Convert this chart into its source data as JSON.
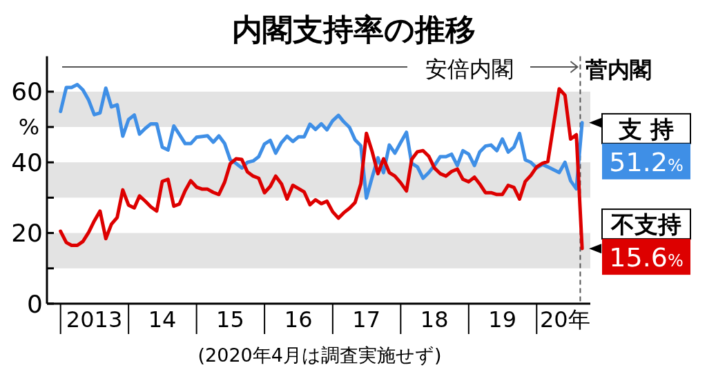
{
  "chart_data": {
    "type": "line",
    "title": "内閣支持率の推移",
    "ylabel": "%",
    "annotations": [
      {
        "text": "安倍内閣",
        "x": "2020-08-22",
        "y": 67
      },
      "(2020年4月は調査実施せず)"
    ],
    "x": [
      "2013-01",
      "2013-02",
      "2013-03",
      "2013-04",
      "2013-05",
      "2013-06",
      "2013-07",
      "2013-08",
      "2013-09",
      "2013-10",
      "2013-11",
      "2013-12",
      "2014-01",
      "2014-02",
      "2014-03",
      "2014-04",
      "2014-05",
      "2014-06",
      "2014-07",
      "2014-08",
      "2014-09",
      "2014-10",
      "2014-11",
      "2014-12",
      "2015-01",
      "2015-02",
      "2015-03",
      "2015-04",
      "2015-05",
      "2015-06",
      "2015-07",
      "2015-08",
      "2015-09",
      "2015-10",
      "2015-11",
      "2015-12",
      "2016-01",
      "2016-02",
      "2016-03",
      "2016-04",
      "2016-05",
      "2016-06",
      "2016-07",
      "2016-08",
      "2016-09",
      "2016-10",
      "2016-11",
      "2016-12",
      "2017-01",
      "2017-02",
      "2017-03",
      "2017-04",
      "2017-05",
      "2017-06",
      "2017-07",
      "2017-08",
      "2017-09",
      "2017-10",
      "2017-11",
      "2017-12",
      "2018-01",
      "2018-02",
      "2018-03",
      "2018-04",
      "2018-05",
      "2018-06",
      "2018-07",
      "2018-08",
      "2018-09",
      "2018-10",
      "2018-11",
      "2018-12",
      "2019-01",
      "2019-02",
      "2019-03",
      "2019-04",
      "2019-05",
      "2019-06",
      "2019-07",
      "2019-08",
      "2019-09",
      "2019-10",
      "2019-11",
      "2019-12",
      "2020-01",
      "2020-02",
      "2020-03",
      "2020-05",
      "2020-06",
      "2020-07",
      "2020-08",
      "2020-09"
    ],
    "series": [
      {
        "name": "支 持",
        "color": "#3f8fe6",
        "values": [
          54.4,
          61.2,
          61.2,
          62.0,
          60.5,
          57.6,
          53.5,
          54.0,
          61.0,
          55.7,
          56.3,
          47.4,
          52.1,
          53.4,
          48.0,
          49.6,
          50.9,
          50.9,
          44.3,
          43.5,
          50.3,
          47.9,
          45.3,
          45.3,
          47.1,
          47.3,
          47.5,
          45.7,
          47.5,
          45.3,
          40.7,
          39.7,
          38.4,
          40.0,
          40.4,
          41.6,
          45.2,
          46.2,
          42.6,
          45.6,
          47.4,
          45.9,
          47.2,
          47.2,
          50.8,
          49.3,
          50.9,
          49.2,
          51.8,
          53.3,
          51.5,
          49.9,
          46.4,
          44.7,
          29.9,
          35.8,
          41.3,
          37.1,
          44.9,
          42.6,
          45.6,
          48.5,
          39.7,
          38.7,
          35.5,
          37.1,
          39.1,
          41.6,
          41.6,
          42.3,
          39.1,
          43.3,
          42.3,
          39.1,
          42.9,
          44.6,
          44.9,
          43.3,
          46.6,
          42.9,
          44.3,
          48.2,
          40.7,
          40.0,
          38.4,
          39.4,
          38.7,
          37.1,
          40.0,
          34.8,
          32.5,
          51.2
        ],
        "value_labels": [
          null,
          null,
          null,
          null,
          null,
          null,
          null,
          null,
          null,
          null,
          null,
          null,
          null,
          null,
          null,
          null,
          null,
          null,
          null,
          null,
          null,
          null,
          null,
          null,
          null,
          null,
          null,
          null,
          null,
          null,
          null,
          null,
          null,
          null,
          null,
          null,
          null,
          null,
          null,
          null,
          null,
          null,
          null,
          null,
          null,
          null,
          null,
          null,
          null,
          null,
          null,
          null,
          null,
          null,
          null,
          null,
          null,
          null,
          null,
          null,
          null,
          null,
          null,
          null,
          null,
          null,
          null,
          null,
          null,
          null,
          null,
          null,
          null,
          null,
          null,
          null,
          null,
          null,
          null,
          null,
          null,
          null,
          null,
          null,
          null,
          null,
          null,
          null,
          null,
          null,
          null,
          "51.2%"
        ]
      },
      {
        "name": "不支持",
        "color": "#dd0000",
        "values": [
          20.5,
          17.3,
          16.5,
          16.5,
          17.6,
          20.2,
          23.4,
          26.2,
          18.4,
          22.5,
          24.4,
          32.2,
          27.9,
          27.1,
          30.5,
          29.0,
          27.4,
          26.2,
          34.6,
          35.2,
          27.6,
          28.2,
          32.0,
          34.8,
          33.0,
          32.4,
          32.4,
          31.5,
          30.9,
          34.4,
          39.6,
          41.0,
          40.8,
          37.3,
          36.1,
          35.5,
          31.4,
          33.2,
          36.1,
          33.9,
          29.6,
          33.5,
          32.6,
          31.6,
          28.0,
          29.4,
          28.3,
          29.0,
          26.0,
          24.2,
          25.7,
          27.0,
          28.6,
          33.9,
          48.2,
          43.0,
          36.8,
          41.0,
          37.1,
          36.1,
          34.2,
          31.9,
          40.8,
          43.0,
          43.3,
          41.7,
          38.4,
          36.8,
          36.1,
          37.4,
          38.1,
          35.2,
          34.5,
          35.8,
          33.9,
          31.4,
          31.4,
          30.9,
          30.9,
          33.5,
          32.9,
          29.6,
          34.6,
          36.3,
          38.7,
          39.7,
          40.2,
          60.8,
          59.0,
          46.6,
          47.8,
          15.6
        ],
        "value_labels": [
          null,
          null,
          null,
          null,
          null,
          null,
          null,
          null,
          null,
          null,
          null,
          null,
          null,
          null,
          null,
          null,
          null,
          null,
          null,
          null,
          null,
          null,
          null,
          null,
          null,
          null,
          null,
          null,
          null,
          null,
          null,
          null,
          null,
          null,
          null,
          null,
          null,
          null,
          null,
          null,
          null,
          null,
          null,
          null,
          null,
          null,
          null,
          null,
          null,
          null,
          null,
          null,
          null,
          null,
          null,
          null,
          null,
          null,
          null,
          null,
          null,
          null,
          null,
          null,
          null,
          null,
          null,
          null,
          null,
          null,
          null,
          null,
          null,
          null,
          null,
          null,
          null,
          null,
          null,
          null,
          null,
          null,
          null,
          null,
          null,
          null,
          null,
          null,
          null,
          null,
          null,
          "15.6%"
        ]
      }
    ],
    "xlim": [
      "2012-10-20",
      "2020-10-15"
    ],
    "xticks": [
      {
        "value": "2013-01",
        "label": null
      },
      {
        "value": "2013-07",
        "label": "2013"
      },
      {
        "value": "2014-01",
        "label": null
      },
      {
        "value": "2014-07",
        "label": "14"
      },
      {
        "value": "2015-01",
        "label": null
      },
      {
        "value": "2015-07",
        "label": "15"
      },
      {
        "value": "2016-01",
        "label": null
      },
      {
        "value": "2016-07",
        "label": "16"
      },
      {
        "value": "2017-01",
        "label": null
      },
      {
        "value": "2017-07",
        "label": "17"
      },
      {
        "value": "2018-01",
        "label": null
      },
      {
        "value": "2018-07",
        "label": "18"
      },
      {
        "value": "2019-01",
        "label": null
      },
      {
        "value": "2019-07",
        "label": "19"
      },
      {
        "value": "2020-01",
        "label": null
      },
      {
        "value": "2020-06",
        "label": "20年"
      }
    ],
    "ylim": [
      0,
      70
    ],
    "yticks": [
      0,
      {
        "value": 10,
        "label": null
      },
      20,
      {
        "value": 30,
        "label": null
      },
      40,
      {
        "value": 50,
        "label": null
      },
      60
    ],
    "bands": [
      {
        "axis": "y",
        "from": 10,
        "to": 20,
        "color": "#e3e3e3"
      },
      {
        "axis": "y",
        "from": 30,
        "to": 40,
        "color": "#e3e3e3"
      },
      {
        "axis": "y",
        "from": 50,
        "to": 60,
        "color": "#e3e3e3"
      }
    ],
    "ref_lines": [
      {
        "axis": "x",
        "value": "2020-08-22",
        "label": "菅内閣",
        "color": "#555555",
        "line_style": "dashed"
      }
    ]
  }
}
